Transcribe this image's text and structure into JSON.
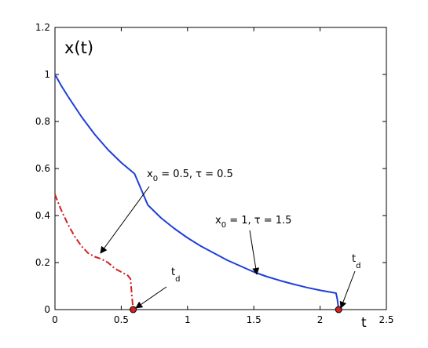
{
  "chart_data": {
    "type": "line",
    "title": "x(t)",
    "xlabel": "t",
    "ylabel": "",
    "xlim": [
      0,
      2.5
    ],
    "ylim": [
      0,
      1.2
    ],
    "grid": false,
    "legend": "none",
    "xticks": [
      "0",
      "0.5",
      "1",
      "1.5",
      "2",
      "2.5"
    ],
    "yticks": [
      "0",
      "0.2",
      "0.4",
      "0.6",
      "0.8",
      "1",
      "1.2"
    ],
    "series": [
      {
        "color": "#1f3fd8",
        "style": "solid",
        "x": [
          0,
          0.05,
          0.1,
          0.2,
          0.3,
          0.4,
          0.5,
          0.6,
          0.7,
          0.8,
          0.9,
          1.0,
          1.1,
          1.2,
          1.3,
          1.4,
          1.5,
          1.6,
          1.7,
          1.8,
          1.9,
          2.0,
          2.05,
          2.1,
          2.12,
          2.13,
          2.14
        ],
        "y": [
          1.0,
          0.95,
          0.905,
          0.82,
          0.745,
          0.68,
          0.625,
          0.578,
          0.445,
          0.39,
          0.345,
          0.305,
          0.27,
          0.24,
          0.21,
          0.185,
          0.16,
          0.14,
          0.123,
          0.108,
          0.094,
          0.082,
          0.077,
          0.072,
          0.07,
          0.045,
          0.0
        ]
      },
      {
        "color": "#d42020",
        "style": "dashdot",
        "x": [
          0,
          0.02,
          0.05,
          0.1,
          0.15,
          0.2,
          0.25,
          0.3,
          0.35,
          0.4,
          0.45,
          0.5,
          0.55,
          0.57,
          0.58,
          0.59
        ],
        "y": [
          0.49,
          0.46,
          0.42,
          0.36,
          0.31,
          0.27,
          0.24,
          0.225,
          0.215,
          0.2,
          0.175,
          0.16,
          0.145,
          0.13,
          0.06,
          0.0
        ]
      }
    ],
    "markers": [
      {
        "x": 0.59,
        "y": 0.0,
        "color": "#d42020"
      },
      {
        "x": 2.14,
        "y": 0.0,
        "color": "#d42020"
      }
    ],
    "annotations": [
      {
        "text": "x",
        "sub": "0",
        "rest": " = 0.5, τ = 0.5"
      },
      {
        "text": "x",
        "sub": "0",
        "rest": " = 1, τ = 1.5"
      },
      {
        "text": "t",
        "sub": "d"
      },
      {
        "text": "t",
        "sub": "d"
      }
    ]
  }
}
